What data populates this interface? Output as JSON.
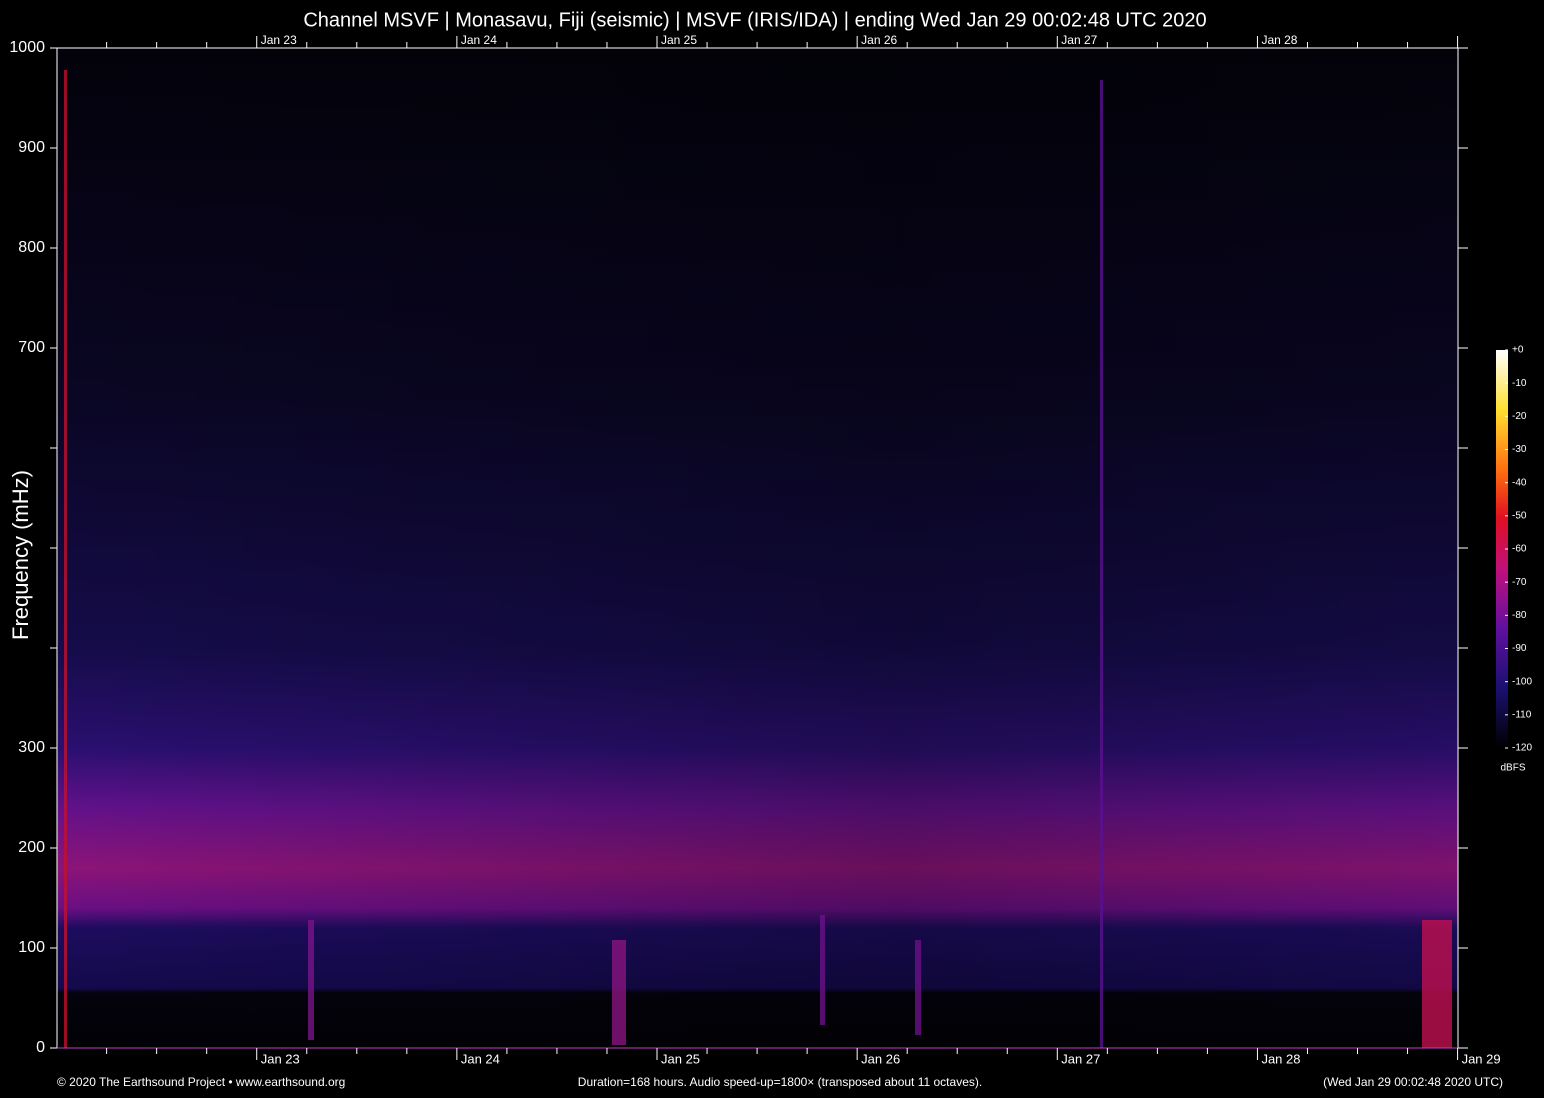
{
  "chart_data": {
    "type": "spectrogram",
    "title": "Channel MSVF | Monasavu, Fiji (seismic) | MSVF (IRIS/IDA) | ending Wed Jan 29 00:02:48 UTC 2020",
    "y_label": "Frequency (mHz)",
    "ylim": [
      0,
      1000
    ],
    "yticks": [
      0,
      100,
      200,
      300,
      {
        "value": 400,
        "label": null
      },
      {
        "value": 500,
        "label": null
      },
      {
        "value": 600,
        "label": null
      },
      700,
      800,
      900,
      1000
    ],
    "xlim": [
      0,
      168
    ],
    "xticks": [
      {
        "value": 23.95,
        "label": "Jan 23"
      },
      {
        "value": 47.95,
        "label": "Jan 24"
      },
      {
        "value": 71.95,
        "label": "Jan 25"
      },
      {
        "value": 95.95,
        "label": "Jan 26"
      },
      {
        "value": 119.95,
        "label": "Jan 27"
      },
      {
        "value": 143.95,
        "label": "Jan 28"
      },
      {
        "value": 167.95,
        "label": "Jan 29"
      }
    ],
    "xminorticks": [
      5.95,
      11.95,
      17.95,
      29.95,
      35.95,
      41.95,
      53.95,
      59.95,
      65.95,
      77.95,
      83.95,
      89.95,
      101.95,
      107.95,
      113.95,
      125.95,
      131.95,
      137.95,
      149.95,
      155.95,
      161.95
    ],
    "colorbar": {
      "label": "dBFS",
      "lim": [
        -120,
        0
      ],
      "ticks": [
        {
          "value": 0,
          "label": "+0"
        },
        -10,
        -20,
        -30,
        -40,
        -50,
        -60,
        -70,
        -80,
        -90,
        -100,
        -110,
        -120
      ]
    },
    "footer_left": "© 2020 The Earthsound Project • www.earthsound.org",
    "footer_center": "Duration=168 hours. Audio speed-up=1800× (transposed about 11 octaves).",
    "footer_right": "(Wed Jan 29 00:02:48 2020 UTC)"
  }
}
